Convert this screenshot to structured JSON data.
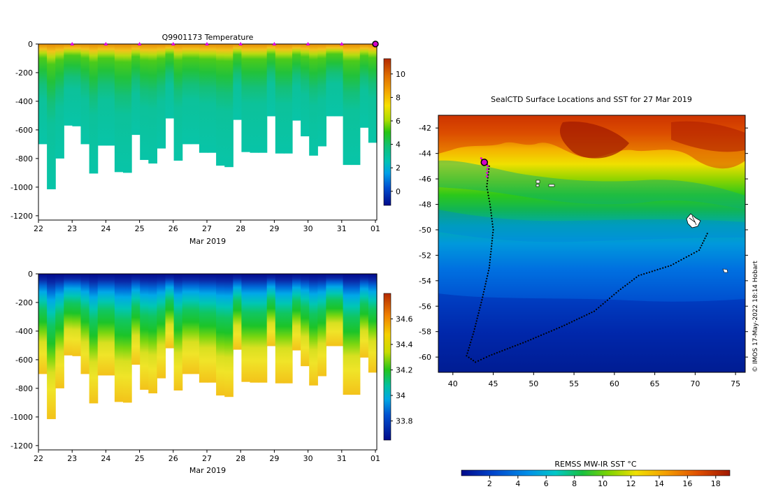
{
  "chart_data": [
    {
      "type": "heatmap",
      "title": "Q9901173  Temperature",
      "xlabel": "Mar 2019",
      "ylabel": "",
      "x_ticks": [
        "22",
        "23",
        "24",
        "25",
        "26",
        "27",
        "28",
        "29",
        "30",
        "31",
        "01"
      ],
      "y_ticks": [
        "0",
        "-200",
        "-400",
        "-600",
        "-800",
        "-1000",
        "-1200"
      ],
      "ylim": [
        -1230,
        0
      ],
      "colorbar_ticks": [
        "0",
        "2",
        "4",
        "6",
        "8",
        "10"
      ],
      "colorbar_range": [
        -1.2,
        11.3
      ],
      "profile_max_depths": [
        700,
        1015,
        800,
        570,
        575,
        700,
        905,
        710,
        710,
        895,
        900,
        635,
        810,
        835,
        730,
        520,
        815,
        700,
        700,
        760,
        760,
        850,
        860,
        530,
        755,
        760,
        760,
        505,
        765,
        765,
        535,
        645,
        780,
        715,
        505,
        505,
        845,
        845,
        585,
        690
      ],
      "surface_markers_day": [
        23,
        24,
        25,
        26,
        27,
        28,
        29,
        30,
        31
      ]
    },
    {
      "type": "heatmap",
      "title": "",
      "xlabel": "Mar 2019",
      "ylabel": "",
      "x_ticks": [
        "22",
        "23",
        "24",
        "25",
        "26",
        "27",
        "28",
        "29",
        "30",
        "31",
        "01"
      ],
      "y_ticks": [
        "0",
        "-200",
        "-400",
        "-600",
        "-800",
        "-1000",
        "-1200"
      ],
      "ylim": [
        -1230,
        0
      ],
      "colorbar_ticks": [
        "33.8",
        "34",
        "34.2",
        "34.4",
        "34.6"
      ],
      "colorbar_range": [
        33.65,
        34.8
      ]
    },
    {
      "type": "heatmap",
      "title": "SealCTD Surface Locations and SST for 27 Mar 2019",
      "x_ticks": [
        "40",
        "45",
        "50",
        "55",
        "60",
        "65",
        "70",
        "75"
      ],
      "y_ticks": [
        "-42",
        "-44",
        "-46",
        "-48",
        "-50",
        "-52",
        "-54",
        "-56",
        "-58",
        "-60"
      ],
      "xlim": [
        38.2,
        76.2
      ],
      "ylim": [
        -61.2,
        -41.0
      ],
      "colorbar_label": "REMSS MW-IR SST °C",
      "colorbar_ticks": [
        "2",
        "4",
        "6",
        "8",
        "10",
        "12",
        "14",
        "16",
        "18"
      ],
      "colorbar_range": [
        0,
        19
      ],
      "track_lonlat": [
        [
          71.5,
          -50.3
        ],
        [
          70.5,
          -51.6
        ],
        [
          67,
          -52.8
        ],
        [
          63,
          -53.6
        ],
        [
          60.5,
          -54.8
        ],
        [
          57.5,
          -56.4
        ],
        [
          53.5,
          -57.6
        ],
        [
          49,
          -58.8
        ],
        [
          44.5,
          -59.9
        ],
        [
          42.8,
          -60.4
        ],
        [
          41.7,
          -59.9
        ],
        [
          42.6,
          -58.0
        ],
        [
          43.6,
          -55.5
        ],
        [
          44.5,
          -53.0
        ],
        [
          45.0,
          -50.0
        ],
        [
          44.6,
          -48.0
        ],
        [
          44.2,
          -46.6
        ],
        [
          44.5,
          -45.0
        ],
        [
          43.7,
          -44.6
        ],
        [
          43.5,
          -44.4
        ]
      ],
      "recent_track_lonlat": [
        [
          43.4,
          -44.35
        ],
        [
          43.9,
          -44.5
        ],
        [
          44.3,
          -44.9
        ],
        [
          44.2,
          -46.0
        ]
      ],
      "current_position_lonlat": [
        43.9,
        -44.7
      ]
    }
  ],
  "watermark": "© IMOS 17-May-2022 18:14 Hobart"
}
